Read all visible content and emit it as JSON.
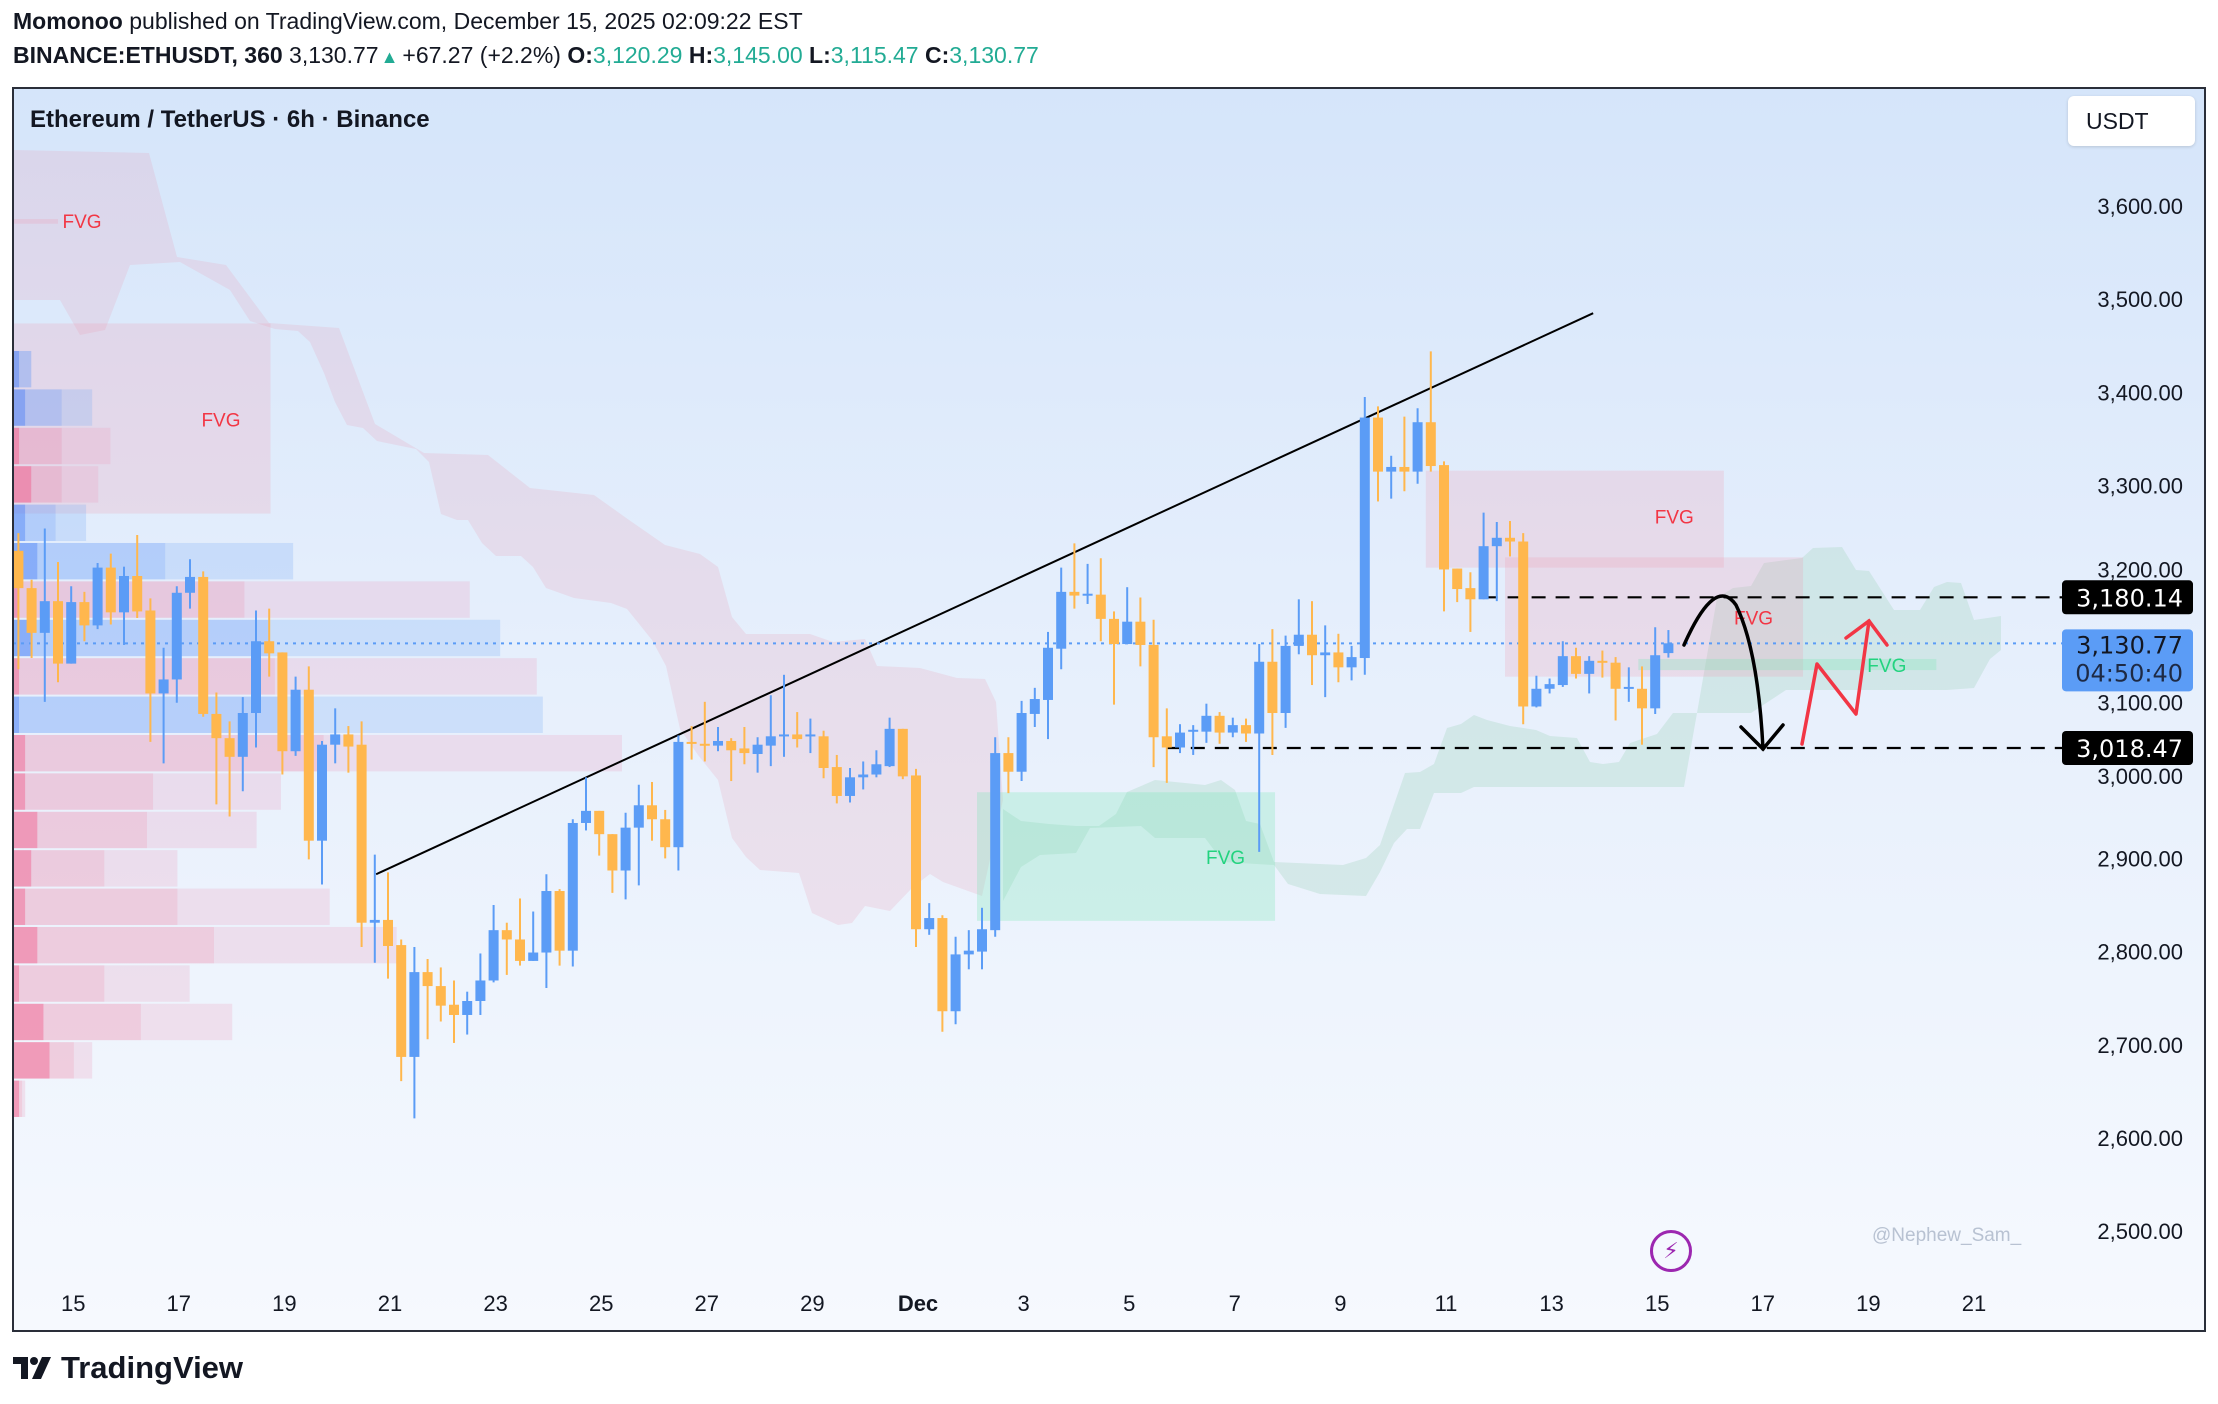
{
  "header": {
    "author": "Momonoo",
    "published": "published on TradingView.com, December 15, 2025 02:09:22 EST",
    "symbol": "BINANCE:ETHUSDT, 360",
    "last": "3,130.77",
    "change": "+67.27 (+2.2%)",
    "o_label": "O:",
    "o": "3,120.29",
    "h_label": "H:",
    "h": "3,145.00",
    "l_label": "L:",
    "l": "3,115.47",
    "c_label": "C:",
    "c": "3,130.77"
  },
  "chart_title": "Ethereum / TetherUS · 6h · Binance",
  "currency_button": "USDT",
  "watermark": "@Nephew_Sam_",
  "footer_brand": "TradingView",
  "colors": {
    "up": "#5B9CF6",
    "down": "#FFB74D",
    "fvg_bear": "#F23645",
    "fvg_bull": "#22D37F",
    "last_price": "#5B9CF6"
  },
  "price_labels": {
    "level_high": "3,180.14",
    "last": "3,130.77",
    "countdown": "04:50:40",
    "level_low": "3,018.47"
  },
  "chart_data": {
    "type": "candlestick",
    "title": "Ethereum / TetherUS · 6h · Binance",
    "interval": "6h",
    "ylim": [
      2440,
      3720
    ],
    "y_ticks": [
      "2,500.00",
      "2,600.00",
      "2,700.00",
      "2,800.00",
      "2,900.00",
      "3,000.00",
      "3,100.00",
      "3,200.00",
      "3,300.00",
      "3,400.00",
      "3,500.00",
      "3,600.00"
    ],
    "y_tick_values": [
      2500,
      2600,
      2700,
      2800,
      2900,
      3000,
      3100,
      3200,
      3300,
      3400,
      3500,
      3600
    ],
    "x_ticks": [
      "15",
      "17",
      "19",
      "21",
      "23",
      "25",
      "27",
      "29",
      "Dec",
      "3",
      "5",
      "7",
      "9",
      "11",
      "13",
      "15",
      "17",
      "19",
      "21"
    ],
    "first_candle": "Nov 14 00:00",
    "candles": [
      [
        3230,
        3249,
        3103,
        3190
      ],
      [
        3190,
        3199,
        3115,
        3142
      ],
      [
        3142,
        3254,
        3068,
        3176
      ],
      [
        3176,
        3218,
        3089,
        3109
      ],
      [
        3109,
        3192,
        3109,
        3175
      ],
      [
        3175,
        3186,
        3133,
        3150
      ],
      [
        3150,
        3217,
        3146,
        3212
      ],
      [
        3212,
        3227,
        3151,
        3164
      ],
      [
        3164,
        3213,
        3129,
        3203
      ],
      [
        3203,
        3247,
        3158,
        3165
      ],
      [
        3166,
        3179,
        3025,
        3077
      ],
      [
        3077,
        3126,
        3002,
        3092
      ],
      [
        3092,
        3192,
        3067,
        3185
      ],
      [
        3185,
        3221,
        3168,
        3202
      ],
      [
        3202,
        3208,
        3052,
        3055
      ],
      [
        3055,
        3078,
        2958,
        3029
      ],
      [
        3029,
        3047,
        2945,
        3009
      ],
      [
        3009,
        3073,
        2972,
        3056
      ],
      [
        3056,
        3166,
        3019,
        3133
      ],
      [
        3133,
        3168,
        3095,
        3120
      ],
      [
        3121,
        3121,
        2990,
        3015
      ],
      [
        3015,
        3095,
        3010,
        3081
      ],
      [
        3081,
        3106,
        2899,
        2919
      ],
      [
        2919,
        3026,
        2872,
        3022
      ],
      [
        3022,
        3061,
        3002,
        3033
      ],
      [
        3033,
        3042,
        2992,
        3020
      ],
      [
        3022,
        3047,
        2805,
        2831
      ],
      [
        2831,
        2904,
        2788,
        2834
      ],
      [
        2834,
        2885,
        2771,
        2806
      ],
      [
        2807,
        2813,
        2661,
        2687
      ],
      [
        2687,
        2805,
        2621,
        2778
      ],
      [
        2778,
        2792,
        2706,
        2763
      ],
      [
        2763,
        2783,
        2725,
        2742
      ],
      [
        2743,
        2769,
        2702,
        2732
      ],
      [
        2732,
        2757,
        2711,
        2747
      ],
      [
        2747,
        2798,
        2732,
        2769
      ],
      [
        2769,
        2850,
        2767,
        2823
      ],
      [
        2823,
        2831,
        2775,
        2813
      ],
      [
        2813,
        2857,
        2785,
        2790
      ],
      [
        2790,
        2843,
        2790,
        2799
      ],
      [
        2799,
        2883,
        2761,
        2865
      ],
      [
        2865,
        2867,
        2785,
        2801
      ],
      [
        2801,
        2942,
        2784,
        2938
      ],
      [
        2938,
        2987,
        2930,
        2951
      ],
      [
        2951,
        2951,
        2903,
        2926
      ],
      [
        2926,
        2926,
        2863,
        2887
      ],
      [
        2887,
        2949,
        2856,
        2933
      ],
      [
        2933,
        2979,
        2871,
        2957
      ],
      [
        2957,
        2982,
        2919,
        2942
      ],
      [
        2942,
        2952,
        2900,
        2912
      ],
      [
        2912,
        3032,
        2887,
        3025
      ],
      [
        3025,
        3042,
        3006,
        3023
      ],
      [
        3023,
        3068,
        3004,
        3022
      ],
      [
        3021,
        3041,
        3015,
        3026
      ],
      [
        3026,
        3029,
        2983,
        3016
      ],
      [
        3018,
        3041,
        3001,
        3013
      ],
      [
        3012,
        3030,
        2992,
        3022
      ],
      [
        3021,
        3075,
        2999,
        3031
      ],
      [
        3031,
        3097,
        3009,
        3033
      ],
      [
        3033,
        3057,
        3019,
        3028
      ],
      [
        3031,
        3050,
        3013,
        3033
      ],
      [
        3031,
        3037,
        2986,
        2997
      ],
      [
        2998,
        3011,
        2959,
        2967
      ],
      [
        2967,
        2997,
        2960,
        2987
      ],
      [
        2987,
        3004,
        2974,
        2990
      ],
      [
        2990,
        3016,
        2987,
        3001
      ],
      [
        2999,
        3051,
        2998,
        3039
      ],
      [
        3039,
        3039,
        2985,
        2988
      ],
      [
        2989,
        2996,
        2805,
        2824
      ],
      [
        2824,
        2852,
        2818,
        2836
      ],
      [
        2836,
        2839,
        2714,
        2736
      ],
      [
        2736,
        2816,
        2722,
        2797
      ],
      [
        2797,
        2823,
        2781,
        2801
      ],
      [
        2800,
        2847,
        2781,
        2824
      ],
      [
        2823,
        3030,
        2816,
        3013
      ],
      [
        3013,
        3030,
        2970,
        2993
      ],
      [
        2993,
        3069,
        2983,
        3056
      ],
      [
        3055,
        3083,
        3041,
        3071
      ],
      [
        3070,
        3143,
        3028,
        3126
      ],
      [
        3125,
        3212,
        3103,
        3186
      ],
      [
        3186,
        3238,
        3168,
        3182
      ],
      [
        3182,
        3216,
        3173,
        3184
      ],
      [
        3183,
        3222,
        3133,
        3157
      ],
      [
        3157,
        3165,
        3065,
        3130
      ],
      [
        3130,
        3191,
        3130,
        3154
      ],
      [
        3154,
        3180,
        3106,
        3129
      ],
      [
        3129,
        3156,
        2998,
        3030
      ],
      [
        3031,
        3061,
        2981,
        3019
      ],
      [
        3019,
        3044,
        3013,
        3035
      ],
      [
        3036,
        3043,
        3011,
        3038
      ],
      [
        3036,
        3066,
        3024,
        3053
      ],
      [
        3053,
        3057,
        3023,
        3035
      ],
      [
        3035,
        3051,
        3030,
        3043
      ],
      [
        3043,
        3050,
        3025,
        3034
      ],
      [
        3034,
        3130,
        2907,
        3111
      ],
      [
        3111,
        3146,
        3011,
        3056
      ],
      [
        3056,
        3139,
        3040,
        3128
      ],
      [
        3128,
        3178,
        3119,
        3140
      ],
      [
        3140,
        3176,
        3086,
        3118
      ],
      [
        3118,
        3150,
        3073,
        3121
      ],
      [
        3121,
        3141,
        3089,
        3105
      ],
      [
        3105,
        3128,
        3091,
        3116
      ],
      [
        3115,
        3395,
        3097,
        3373
      ],
      [
        3373,
        3385,
        3283,
        3315
      ],
      [
        3315,
        3332,
        3286,
        3320
      ],
      [
        3320,
        3374,
        3294,
        3315
      ],
      [
        3315,
        3383,
        3302,
        3368
      ],
      [
        3368,
        3444,
        3315,
        3321
      ],
      [
        3322,
        3326,
        3165,
        3210
      ],
      [
        3211,
        3211,
        3175,
        3189
      ],
      [
        3190,
        3207,
        3143,
        3178
      ],
      [
        3178,
        3271,
        3178,
        3235
      ],
      [
        3235,
        3261,
        3176,
        3244
      ],
      [
        3244,
        3262,
        3224,
        3240
      ],
      [
        3240,
        3249,
        3044,
        3063
      ],
      [
        3063,
        3096,
        3062,
        3082
      ],
      [
        3082,
        3093,
        3077,
        3087
      ],
      [
        3086,
        3133,
        3084,
        3117
      ],
      [
        3117,
        3126,
        3093,
        3098
      ],
      [
        3098,
        3117,
        3077,
        3112
      ],
      [
        3112,
        3123,
        3094,
        3110
      ],
      [
        3110,
        3116,
        3048,
        3082
      ],
      [
        3082,
        3105,
        3068,
        3084
      ],
      [
        3082,
        3106,
        3022,
        3061
      ],
      [
        3061,
        3148,
        3055,
        3118
      ],
      [
        3120.29,
        3145.0,
        3115.47,
        3130.77
      ]
    ],
    "candle_fields": [
      "open",
      "high",
      "low",
      "close"
    ],
    "last_price": 3130.77,
    "levels": [
      {
        "price": 3180.14,
        "label": "3,180.14",
        "from_candle": 111
      },
      {
        "price": 3018.47,
        "label": "3,018.47",
        "from_candle": 87
      }
    ],
    "trendline": {
      "from": {
        "candle": 27.1,
        "price": 2883
      },
      "to": {
        "candle": 119.3,
        "price": 3485
      }
    },
    "fvg_zones": [
      {
        "label": "FVG",
        "type": "bearish",
        "price_high": 3586,
        "price_low": 3581,
        "from_candle": 0,
        "to_candle": 3
      },
      {
        "label": "FVG",
        "type": "bearish",
        "price_high": 3474,
        "price_low": 3270,
        "from_candle": 0,
        "to_candle": 19.1
      },
      {
        "label": "FVG",
        "type": "bearish",
        "price_high": 3316,
        "price_low": 3212,
        "from_candle": 107,
        "to_candle": 129.2
      },
      {
        "label": "FVG",
        "type": "bearish",
        "price_high": 3223,
        "price_low": 3095,
        "from_candle": 113,
        "to_candle": 135.2
      },
      {
        "label": "FVG",
        "type": "bullish",
        "price_high": 3114,
        "price_low": 3102,
        "from_candle": 123.1,
        "to_candle": 145.3
      },
      {
        "label": "FVG",
        "type": "bullish",
        "price_high": 2971,
        "price_low": 2833,
        "from_candle": 73,
        "to_candle": 95.2
      }
    ],
    "volume_profile": [
      {
        "price_high": 3445.5,
        "price_low": 3404.3,
        "side": "up",
        "values": [
          1,
          3
        ]
      },
      {
        "price_high": 3404.3,
        "price_low": 3363.1,
        "side": "up",
        "values": [
          2,
          8,
          13
        ]
      },
      {
        "price_high": 3363.1,
        "price_low": 3321.9,
        "side": "down",
        "values": [
          1,
          8,
          16
        ]
      },
      {
        "price_high": 3321.9,
        "price_low": 3280.7,
        "side": "down",
        "values": [
          3,
          8,
          14
        ]
      },
      {
        "price_high": 3280.7,
        "price_low": 3239.5,
        "side": "up",
        "values": [
          2,
          7,
          12
        ]
      },
      {
        "price_high": 3239.5,
        "price_low": 3198.3,
        "side": "up",
        "values": [
          4,
          25,
          46
        ]
      },
      {
        "price_high": 3198.3,
        "price_low": 3157.1,
        "side": "down",
        "values": [
          1,
          38,
          75
        ]
      },
      {
        "price_high": 3157.1,
        "price_low": 3115.9,
        "side": "up",
        "values": [
          3,
          42,
          80
        ]
      },
      {
        "price_high": 3115.9,
        "price_low": 3074.7,
        "side": "down",
        "values": [
          1,
          43,
          86
        ]
      },
      {
        "price_high": 3074.7,
        "price_low": 3033.5,
        "side": "up",
        "values": [
          1,
          44,
          87
        ]
      },
      {
        "price_high": 3033.5,
        "price_low": 2992.3,
        "side": "down",
        "values": [
          2,
          51,
          100
        ]
      },
      {
        "price_high": 2992.3,
        "price_low": 2951.1,
        "side": "down",
        "values": [
          2,
          23,
          44
        ]
      },
      {
        "price_high": 2951.1,
        "price_low": 2909.9,
        "side": "down",
        "values": [
          4,
          22,
          40
        ]
      },
      {
        "price_high": 2909.9,
        "price_low": 2868.7,
        "side": "down",
        "values": [
          3,
          15,
          27
        ]
      },
      {
        "price_high": 2868.7,
        "price_low": 2827.5,
        "side": "down",
        "values": [
          2,
          27,
          52
        ]
      },
      {
        "price_high": 2827.5,
        "price_low": 2786.3,
        "side": "down",
        "values": [
          4,
          33,
          63
        ]
      },
      {
        "price_high": 2786.3,
        "price_low": 2745.1,
        "side": "down",
        "values": [
          1,
          15,
          29
        ]
      },
      {
        "price_high": 2745.1,
        "price_low": 2703.9,
        "side": "down",
        "values": [
          5,
          21,
          36
        ]
      },
      {
        "price_high": 2703.9,
        "price_low": 2662.7,
        "side": "down",
        "values": [
          6,
          10,
          13
        ]
      },
      {
        "price_high": 2662.7,
        "price_low": 2621.5,
        "side": "down",
        "values": [
          1,
          1.5,
          2
        ]
      }
    ],
    "grid": false,
    "legend": "none"
  }
}
